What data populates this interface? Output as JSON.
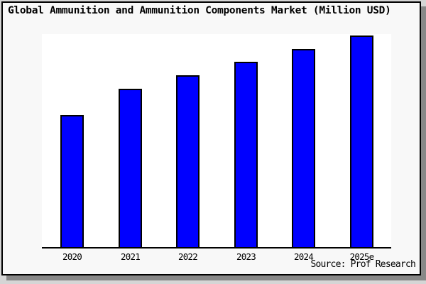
{
  "palette": {
    "outer_background": "#d5d5d5",
    "panel_background": "#f8f8f8",
    "plot_background": "#ffffff",
    "panel_border": "#000000",
    "drop_shadow": "#888888",
    "bar_fill": "#0000ff",
    "bar_border": "#000000",
    "text_color": "#000000"
  },
  "header": {
    "title": "Global Ammunition and Ammunition Components Market (Million USD)"
  },
  "footer": {
    "source_label": "Source: Prof Research"
  },
  "chart_data": {
    "type": "bar",
    "title": "Global Ammunition and Ammunition Components Market (Million USD)",
    "categories": [
      "2020",
      "2021",
      "2022",
      "2023",
      "2024",
      "2025e"
    ],
    "values": [
      62.7,
      75.0,
      81.3,
      87.7,
      93.7,
      100.0
    ],
    "value_scale_note": "y-axis has no tick labels or gridlines in source; values are bar heights relative to the tallest bar (2025e = 100)",
    "series_name": "Market size (Million USD)",
    "xlabel": "",
    "ylabel": "",
    "grid": false,
    "legend": false,
    "bar_color": "#0000ff",
    "bar_border_color": "#000000",
    "source": "Source: Prof Research"
  }
}
